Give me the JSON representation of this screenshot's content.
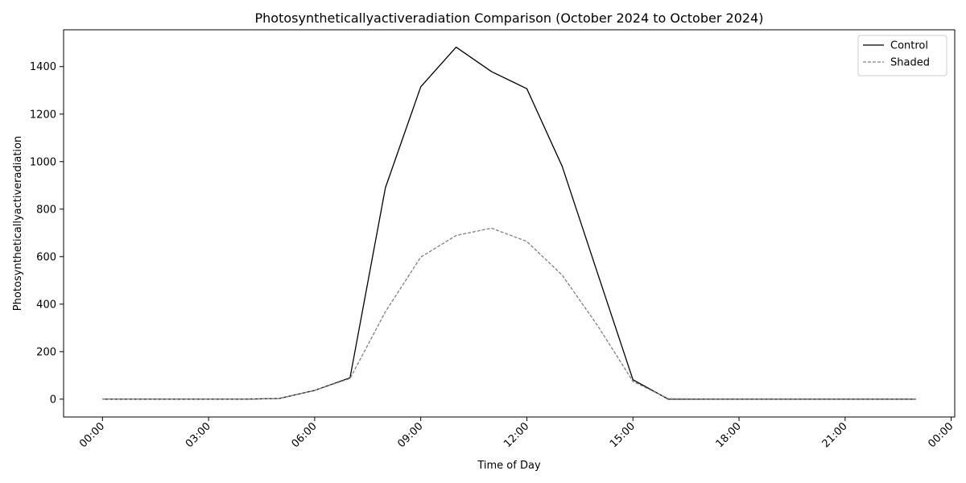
{
  "chart_data": {
    "type": "line",
    "title": "Photosyntheticallyactiveradiation Comparison (October 2024 to October 2024)",
    "xlabel": "Time of Day",
    "ylabel": "Photosyntheticallyactiveradiation",
    "x": [
      0,
      1,
      2,
      3,
      4,
      5,
      6,
      7,
      8,
      9,
      10,
      11,
      12,
      13,
      14,
      15,
      16,
      17,
      18,
      19,
      20,
      21,
      22,
      23
    ],
    "x_unit": "hour of day",
    "xlim": [
      -1.1,
      24.1
    ],
    "ylim": [
      -75,
      1555
    ],
    "x_ticks": [
      0,
      3,
      6,
      9,
      12,
      15,
      18,
      21,
      24
    ],
    "x_tick_labels": [
      "00:00",
      "03:00",
      "06:00",
      "09:00",
      "12:00",
      "15:00",
      "18:00",
      "21:00",
      "00:00"
    ],
    "y_ticks": [
      0,
      200,
      400,
      600,
      800,
      1000,
      1200,
      1400
    ],
    "y_tick_labels": [
      "0",
      "200",
      "400",
      "600",
      "800",
      "1000",
      "1200",
      "1400"
    ],
    "grid": false,
    "legend_position": "top-right",
    "series": [
      {
        "name": "Control",
        "color": "#000000",
        "line_style": "solid",
        "values": [
          0,
          0,
          0,
          0,
          0,
          3,
          37,
          90,
          890,
          1315,
          1482,
          1379,
          1307,
          980,
          530,
          82,
          0,
          0,
          0,
          0,
          0,
          0,
          0,
          0
        ]
      },
      {
        "name": "Shaded",
        "color": "#808080",
        "line_style": "dashed",
        "values": [
          0,
          0,
          0,
          0,
          0,
          3,
          37,
          87,
          368,
          598,
          689,
          720,
          664,
          522,
          310,
          75,
          2,
          1,
          1,
          1,
          1,
          1,
          1,
          1
        ]
      }
    ]
  }
}
